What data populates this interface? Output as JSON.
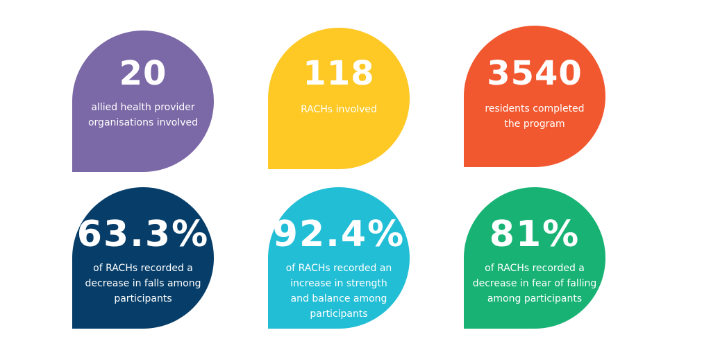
{
  "colors": {
    "purple": "#7b68a6",
    "yellow": "#fec825",
    "orange": "#f2582f",
    "navy": "#073e69",
    "cyan": "#22bed5",
    "green": "#17b274"
  },
  "stats": [
    {
      "value": "20",
      "description_lines": [
        "allied health provider",
        "organisations involved"
      ],
      "color": "purple"
    },
    {
      "value": "118",
      "description_lines": [
        "RACHs involved"
      ],
      "color": "yellow"
    },
    {
      "value": "3540",
      "description_lines": [
        "residents completed",
        "the program"
      ],
      "color": "orange"
    },
    {
      "value": "63.3%",
      "description_lines": [
        "of RACHs recorded a",
        "decrease in falls among",
        "participants"
      ],
      "color": "navy"
    },
    {
      "value": "92.4%",
      "description_lines": [
        "of RACHs recorded an",
        "increase in strength",
        "and balance among",
        "participants"
      ],
      "color": "cyan"
    },
    {
      "value": "81%",
      "description_lines": [
        "of RACHs recorded a",
        "decrease in fear of falling",
        "among participants"
      ],
      "color": "green"
    }
  ]
}
